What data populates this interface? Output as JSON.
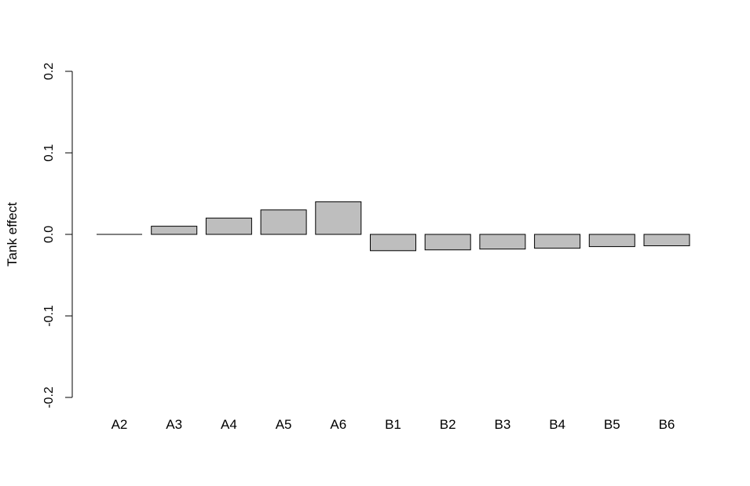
{
  "chart_data": {
    "type": "bar",
    "title": "",
    "xlabel": "",
    "ylabel": "Tank effect",
    "ylim": [
      -0.2,
      0.2
    ],
    "yticks": [
      -0.2,
      -0.1,
      0.0,
      0.1,
      0.2
    ],
    "ytick_labels": [
      "-0.2",
      "-0.1",
      "0.0",
      "0.1",
      "0.2"
    ],
    "categories": [
      "A2",
      "A3",
      "A4",
      "A5",
      "A6",
      "B1",
      "B2",
      "B3",
      "B4",
      "B5",
      "B6"
    ],
    "values": [
      0.0,
      0.01,
      0.02,
      0.03,
      0.04,
      -0.02,
      -0.019,
      -0.018,
      -0.017,
      -0.015,
      -0.014
    ],
    "grid": false,
    "legend": "none",
    "bar_fill": "#bebebe",
    "bar_stroke": "#000000"
  }
}
